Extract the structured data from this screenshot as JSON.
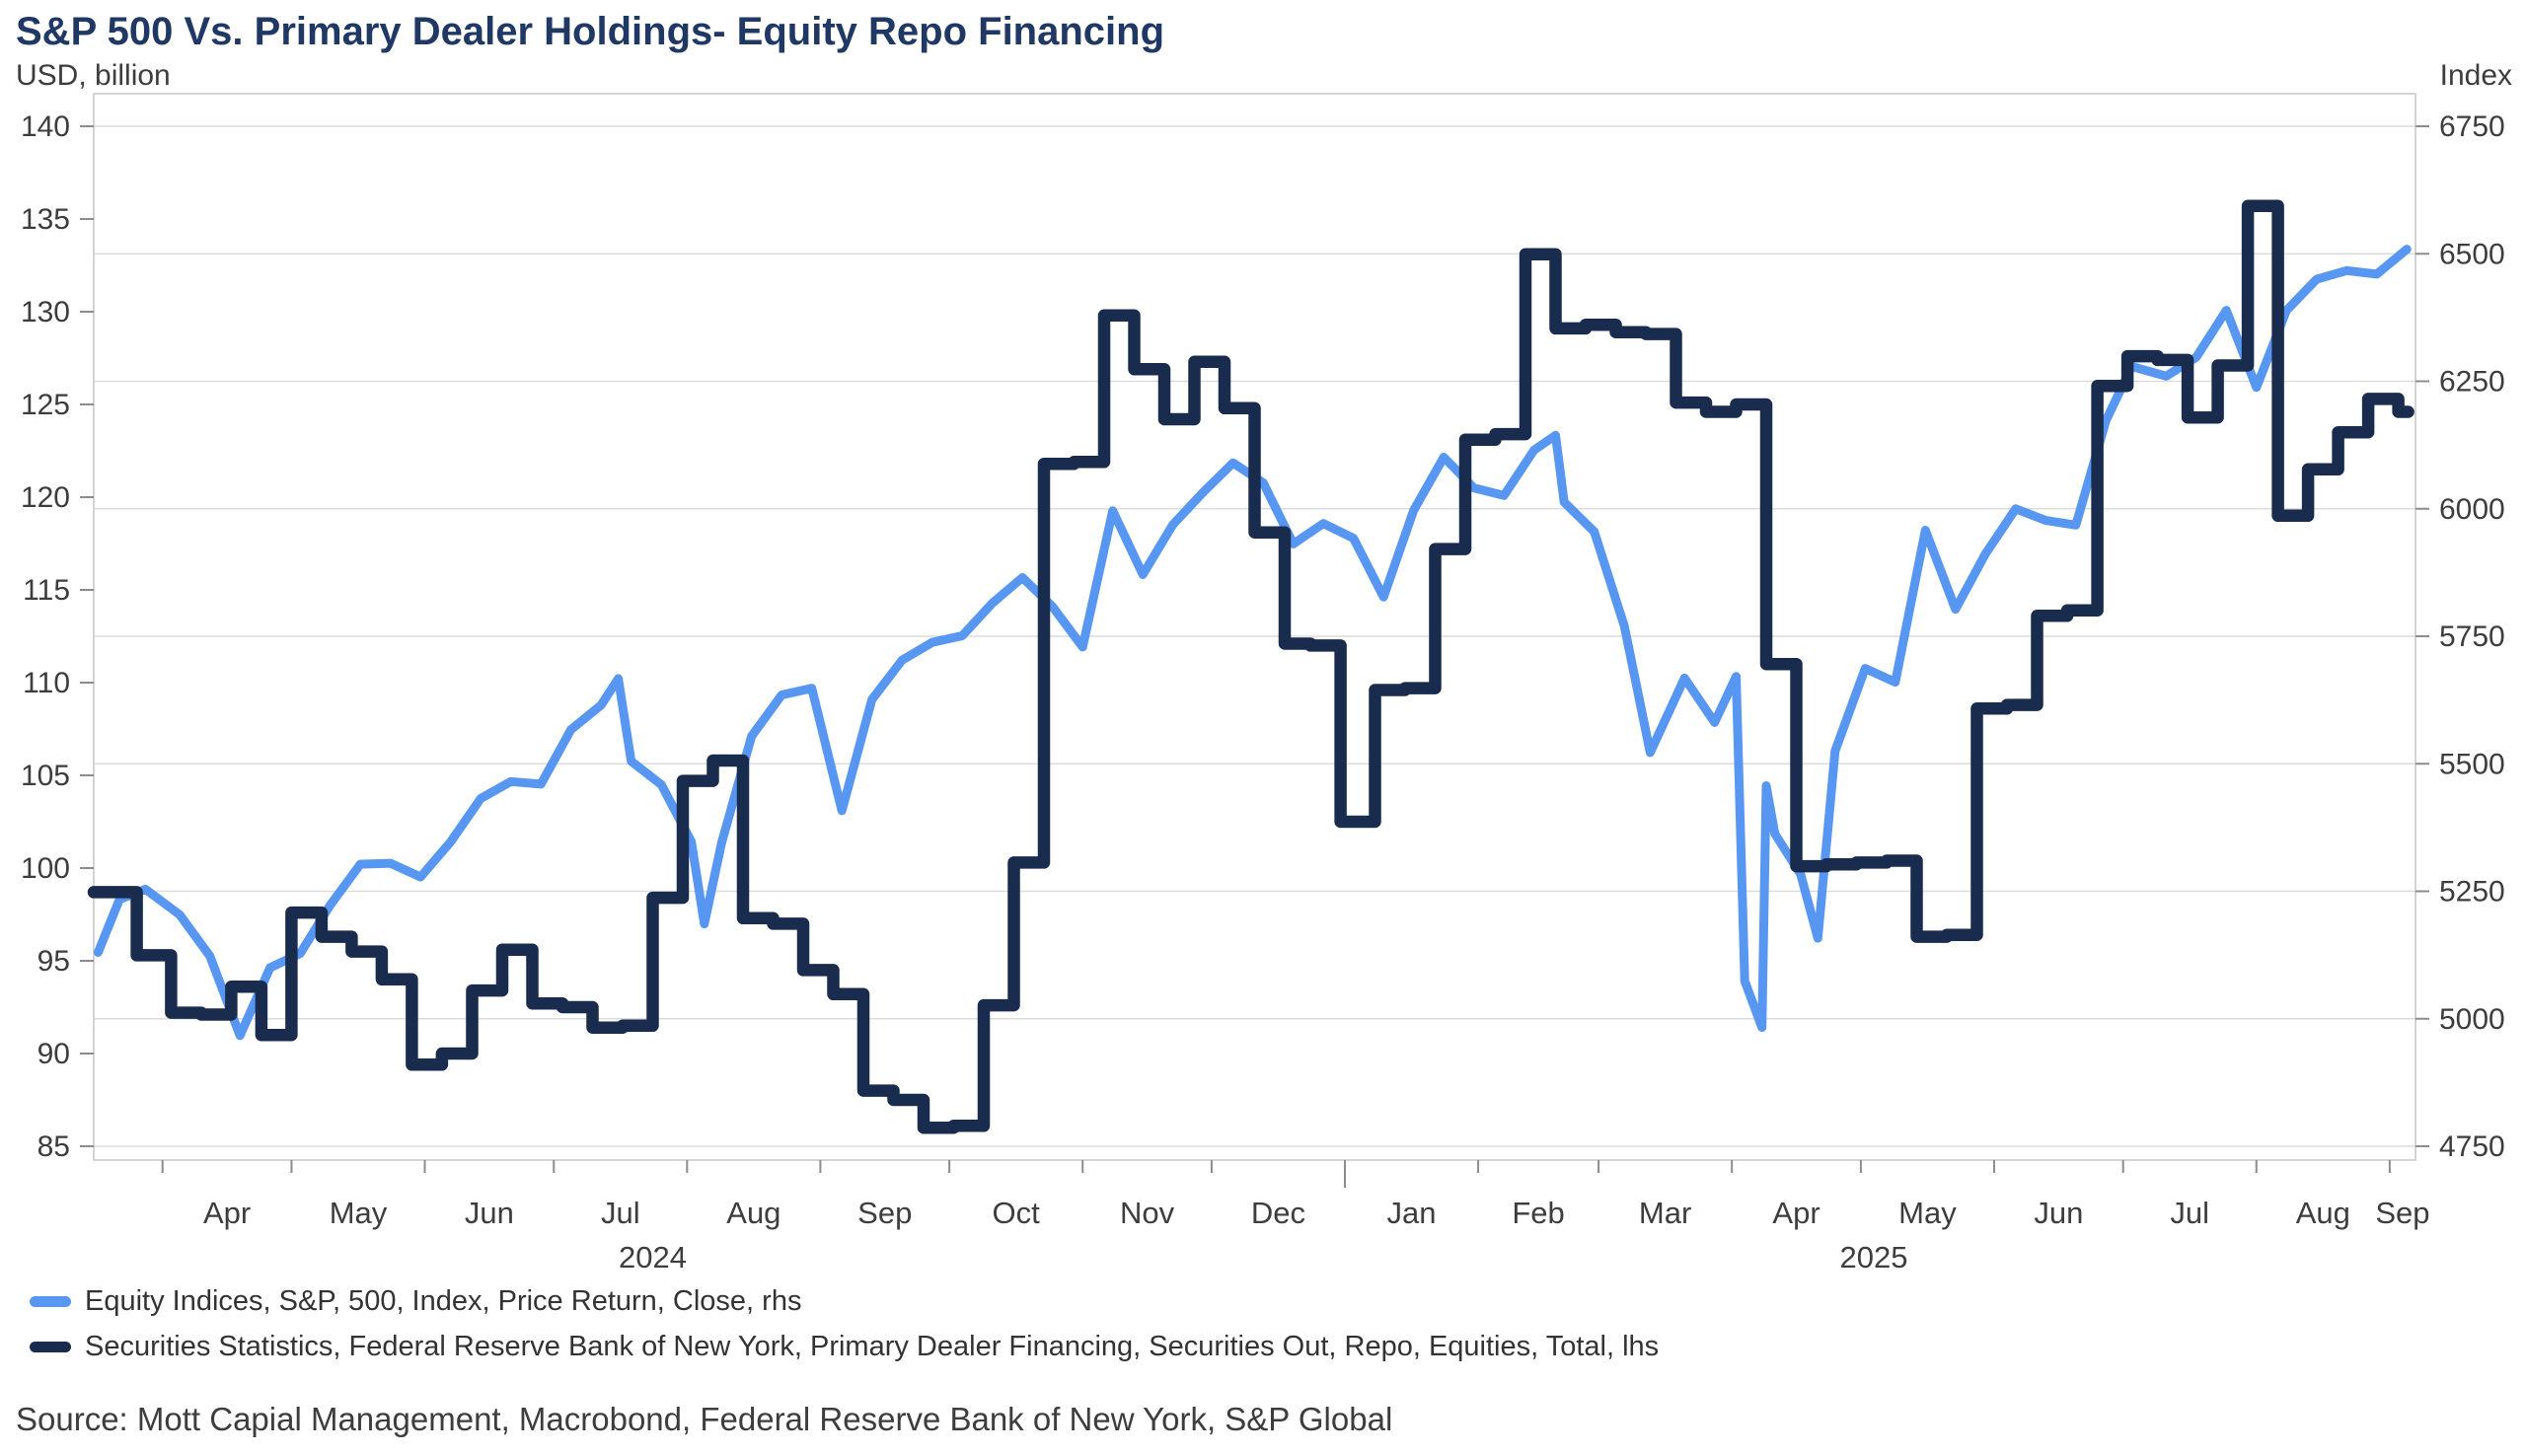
{
  "title": "S&P 500 Vs. Primary Dealer Holdings- Equity Repo Financing",
  "colors": {
    "title": "#1f3864",
    "axis_text": "#3d3d3d",
    "grid": "#dcdcdc",
    "frame": "#c6c6c6",
    "tick": "#8c8c8c",
    "sp500_blue": "#5797f2",
    "repo_navy": "#1a2c4e"
  },
  "legend": {
    "items": [
      {
        "label": "Equity Indices, S&P, 500, Index, Price Return, Close, rhs",
        "color": "#5797f2"
      },
      {
        "label": "Securities Statistics, Federal Reserve Bank of New York, Primary Dealer Financing, Securities Out, Repo, Equities, Total, lhs",
        "color": "#1a2c4e"
      }
    ]
  },
  "source": "Source: Mott Capial Management, Macrobond, Federal Reserve Bank of New York, S&P Global",
  "chart_data": {
    "type": "line",
    "title": "S&P 500 Vs. Primary Dealer Holdings- Equity Repo Financing",
    "left_axis": {
      "label": "USD, billion",
      "min": 85,
      "max": 140,
      "ticks": [
        140,
        135,
        130,
        125,
        120,
        115,
        110,
        105,
        100,
        95,
        90,
        85
      ]
    },
    "right_axis": {
      "label": "Index",
      "min": 4750,
      "max": 6750,
      "ticks": [
        6750,
        6500,
        6250,
        6000,
        5750,
        5500,
        5250,
        5000,
        4750
      ],
      "gridlines": true
    },
    "x_axis": {
      "start": "2024-03-16",
      "end": "2025-09-07",
      "months": [
        {
          "label": "Apr",
          "date": "2024-04-01"
        },
        {
          "label": "May",
          "date": "2024-05-01"
        },
        {
          "label": "Jun",
          "date": "2024-06-01"
        },
        {
          "label": "Jul",
          "date": "2024-07-01"
        },
        {
          "label": "Aug",
          "date": "2024-08-01"
        },
        {
          "label": "Sep",
          "date": "2024-09-01"
        },
        {
          "label": "Oct",
          "date": "2024-10-01"
        },
        {
          "label": "Nov",
          "date": "2024-11-01"
        },
        {
          "label": "Dec",
          "date": "2024-12-01"
        },
        {
          "label": "Jan",
          "date": "2025-01-01"
        },
        {
          "label": "Feb",
          "date": "2025-02-01"
        },
        {
          "label": "Mar",
          "date": "2025-03-01"
        },
        {
          "label": "Apr",
          "date": "2025-04-01"
        },
        {
          "label": "May",
          "date": "2025-05-01"
        },
        {
          "label": "Jun",
          "date": "2025-06-01"
        },
        {
          "label": "Jul",
          "date": "2025-07-01"
        },
        {
          "label": "Aug",
          "date": "2025-08-01"
        },
        {
          "label": "Sep",
          "date": "2025-09-01"
        }
      ],
      "year_boundary_ticks": [
        "2025-01-01"
      ],
      "years": [
        {
          "label": "2024",
          "date": "2024-07-24"
        },
        {
          "label": "2025",
          "date": "2025-05-04"
        }
      ]
    },
    "series": [
      {
        "name": "Equity Indices, S&P, 500, Index, Price Return, Close, rhs",
        "axis": "rhs",
        "style": "line",
        "color": "#5797f2",
        "data": [
          [
            "2024-03-17",
            5130
          ],
          [
            "2024-03-22",
            5234
          ],
          [
            "2024-03-28",
            5254
          ],
          [
            "2024-04-05",
            5204
          ],
          [
            "2024-04-12",
            5123
          ],
          [
            "2024-04-19",
            4967
          ],
          [
            "2024-04-26",
            5100
          ],
          [
            "2024-05-03",
            5128
          ],
          [
            "2024-05-10",
            5223
          ],
          [
            "2024-05-17",
            5303
          ],
          [
            "2024-05-24",
            5305
          ],
          [
            "2024-05-31",
            5278
          ],
          [
            "2024-06-07",
            5347
          ],
          [
            "2024-06-14",
            5432
          ],
          [
            "2024-06-21",
            5465
          ],
          [
            "2024-06-28",
            5460
          ],
          [
            "2024-07-05",
            5567
          ],
          [
            "2024-07-12",
            5615
          ],
          [
            "2024-07-16",
            5667
          ],
          [
            "2024-07-19",
            5505
          ],
          [
            "2024-07-26",
            5459
          ],
          [
            "2024-08-02",
            5347
          ],
          [
            "2024-08-05",
            5186
          ],
          [
            "2024-08-09",
            5344
          ],
          [
            "2024-08-16",
            5554
          ],
          [
            "2024-08-23",
            5635
          ],
          [
            "2024-08-30",
            5648
          ],
          [
            "2024-09-06",
            5408
          ],
          [
            "2024-09-13",
            5626
          ],
          [
            "2024-09-20",
            5703
          ],
          [
            "2024-09-27",
            5738
          ],
          [
            "2024-10-04",
            5751
          ],
          [
            "2024-10-11",
            5815
          ],
          [
            "2024-10-18",
            5865
          ],
          [
            "2024-10-25",
            5808
          ],
          [
            "2024-11-01",
            5729
          ],
          [
            "2024-11-08",
            5996
          ],
          [
            "2024-11-15",
            5871
          ],
          [
            "2024-11-22",
            5969
          ],
          [
            "2024-11-29",
            6032
          ],
          [
            "2024-12-06",
            6090
          ],
          [
            "2024-12-13",
            6051
          ],
          [
            "2024-12-20",
            5931
          ],
          [
            "2024-12-27",
            5971
          ],
          [
            "2025-01-03",
            5942
          ],
          [
            "2025-01-10",
            5827
          ],
          [
            "2025-01-17",
            5997
          ],
          [
            "2025-01-24",
            6101
          ],
          [
            "2025-01-31",
            6041
          ],
          [
            "2025-02-07",
            6026
          ],
          [
            "2025-02-14",
            6115
          ],
          [
            "2025-02-19",
            6144
          ],
          [
            "2025-02-21",
            6013
          ],
          [
            "2025-02-28",
            5955
          ],
          [
            "2025-03-07",
            5770
          ],
          [
            "2025-03-13",
            5522
          ],
          [
            "2025-03-21",
            5668
          ],
          [
            "2025-03-28",
            5581
          ],
          [
            "2025-04-02",
            5671
          ],
          [
            "2025-04-04",
            5074
          ],
          [
            "2025-04-08",
            4983
          ],
          [
            "2025-04-09",
            5457
          ],
          [
            "2025-04-11",
            5363
          ],
          [
            "2025-04-17",
            5283
          ],
          [
            "2025-04-21",
            5158
          ],
          [
            "2025-04-25",
            5525
          ],
          [
            "2025-05-02",
            5687
          ],
          [
            "2025-05-09",
            5660
          ],
          [
            "2025-05-16",
            5958
          ],
          [
            "2025-05-23",
            5803
          ],
          [
            "2025-05-30",
            5912
          ],
          [
            "2025-06-06",
            6000
          ],
          [
            "2025-06-13",
            5977
          ],
          [
            "2025-06-20",
            5968
          ],
          [
            "2025-06-27",
            6173
          ],
          [
            "2025-07-03",
            6279
          ],
          [
            "2025-07-11",
            6260
          ],
          [
            "2025-07-18",
            6297
          ],
          [
            "2025-07-25",
            6389
          ],
          [
            "2025-08-01",
            6238
          ],
          [
            "2025-08-08",
            6389
          ],
          [
            "2025-08-15",
            6450
          ],
          [
            "2025-08-22",
            6467
          ],
          [
            "2025-08-29",
            6460
          ],
          [
            "2025-09-05",
            6509
          ]
        ]
      },
      {
        "name": "Securities Statistics, Federal Reserve Bank of New York, Primary Dealer Financing, Securities Out, Repo, Equities, Total, lhs",
        "axis": "lhs",
        "style": "step",
        "color": "#1a2c4e",
        "data": [
          [
            "2024-03-16",
            98.7
          ],
          [
            "2024-03-26",
            95.3
          ],
          [
            "2024-04-03",
            92.2
          ],
          [
            "2024-04-10",
            92.1
          ],
          [
            "2024-04-17",
            93.6
          ],
          [
            "2024-04-24",
            91.0
          ],
          [
            "2024-05-01",
            97.6
          ],
          [
            "2024-05-08",
            96.3
          ],
          [
            "2024-05-15",
            95.5
          ],
          [
            "2024-05-22",
            94.0
          ],
          [
            "2024-05-29",
            89.4
          ],
          [
            "2024-06-05",
            90.0
          ],
          [
            "2024-06-12",
            93.4
          ],
          [
            "2024-06-19",
            95.6
          ],
          [
            "2024-06-26",
            92.7
          ],
          [
            "2024-07-03",
            92.5
          ],
          [
            "2024-07-10",
            91.4
          ],
          [
            "2024-07-17",
            91.5
          ],
          [
            "2024-07-24",
            98.4
          ],
          [
            "2024-07-31",
            104.7
          ],
          [
            "2024-08-07",
            105.8
          ],
          [
            "2024-08-14",
            97.3
          ],
          [
            "2024-08-21",
            97.0
          ],
          [
            "2024-08-28",
            94.5
          ],
          [
            "2024-09-04",
            93.2
          ],
          [
            "2024-09-11",
            88.0
          ],
          [
            "2024-09-18",
            87.5
          ],
          [
            "2024-09-25",
            86.0
          ],
          [
            "2024-10-02",
            86.1
          ],
          [
            "2024-10-09",
            92.6
          ],
          [
            "2024-10-16",
            100.3
          ],
          [
            "2024-10-23",
            121.8
          ],
          [
            "2024-10-30",
            121.9
          ],
          [
            "2024-11-06",
            129.8
          ],
          [
            "2024-11-13",
            126.9
          ],
          [
            "2024-11-20",
            124.2
          ],
          [
            "2024-11-27",
            127.3
          ],
          [
            "2024-12-04",
            124.8
          ],
          [
            "2024-12-11",
            118.1
          ],
          [
            "2024-12-18",
            112.1
          ],
          [
            "2024-12-24",
            112.0
          ],
          [
            "2024-12-31",
            102.5
          ],
          [
            "2025-01-08",
            109.6
          ],
          [
            "2025-01-15",
            109.7
          ],
          [
            "2025-01-22",
            117.2
          ],
          [
            "2025-01-29",
            123.1
          ],
          [
            "2025-02-05",
            123.4
          ],
          [
            "2025-02-12",
            133.1
          ],
          [
            "2025-02-19",
            129.1
          ],
          [
            "2025-02-26",
            129.3
          ],
          [
            "2025-03-05",
            128.9
          ],
          [
            "2025-03-12",
            128.8
          ],
          [
            "2025-03-19",
            125.1
          ],
          [
            "2025-03-26",
            124.6
          ],
          [
            "2025-04-02",
            125.0
          ],
          [
            "2025-04-09",
            111.0
          ],
          [
            "2025-04-16",
            100.1
          ],
          [
            "2025-04-23",
            100.2
          ],
          [
            "2025-04-30",
            100.3
          ],
          [
            "2025-05-07",
            100.4
          ],
          [
            "2025-05-14",
            96.3
          ],
          [
            "2025-05-21",
            96.4
          ],
          [
            "2025-05-28",
            108.6
          ],
          [
            "2025-06-04",
            108.8
          ],
          [
            "2025-06-11",
            113.6
          ],
          [
            "2025-06-18",
            113.9
          ],
          [
            "2025-06-25",
            126.0
          ],
          [
            "2025-07-02",
            127.6
          ],
          [
            "2025-07-09",
            127.4
          ],
          [
            "2025-07-16",
            124.3
          ],
          [
            "2025-07-23",
            127.1
          ],
          [
            "2025-07-30",
            135.7
          ],
          [
            "2025-08-06",
            119.0
          ],
          [
            "2025-08-13",
            121.5
          ],
          [
            "2025-08-20",
            123.5
          ],
          [
            "2025-08-27",
            125.3
          ],
          [
            "2025-09-03",
            124.6
          ]
        ]
      }
    ]
  }
}
